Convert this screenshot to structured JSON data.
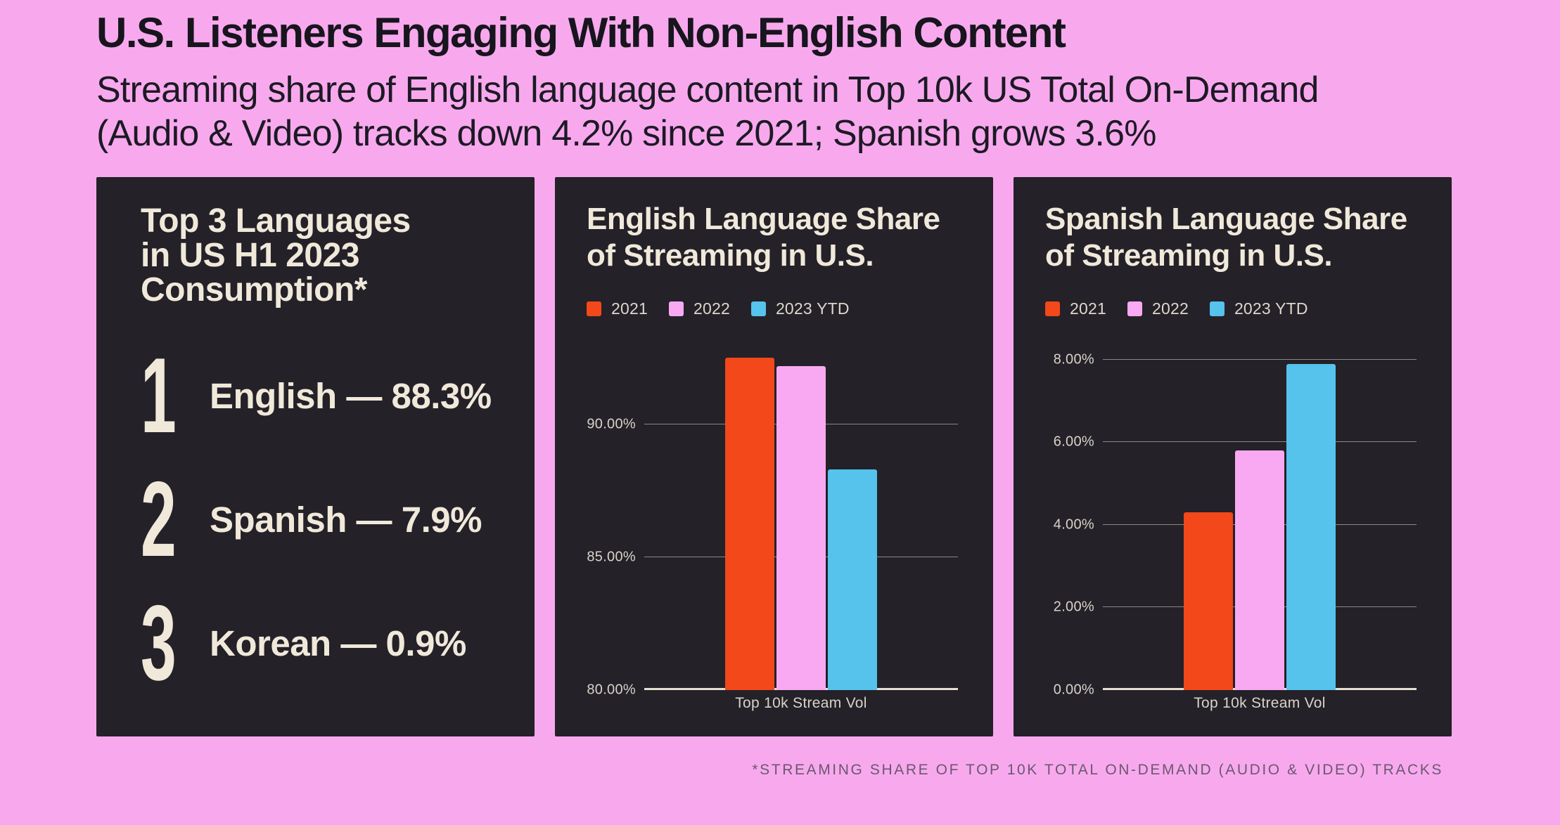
{
  "header": {
    "title": "U.S. Listeners Engaging With Non-English Content",
    "subtitle": "Streaming share of English language content in Top 10k US Total On-Demand\n(Audio & Video) tracks down 4.2% since 2021; Spanish grows 3.6%"
  },
  "ranking": {
    "title": "Top 3 Languages\nin US H1 2023\nConsumption*",
    "items": [
      {
        "rank": "1",
        "language": "English",
        "share": "88.3%",
        "label": "English — 88.3%"
      },
      {
        "rank": "2",
        "language": "Spanish",
        "share": "7.9%",
        "label": "Spanish — 7.9%"
      },
      {
        "rank": "3",
        "language": "Korean",
        "share": "0.9%",
        "label": "Korean — 0.9%"
      }
    ]
  },
  "chart_data": [
    {
      "type": "bar",
      "title": "English Language Share\nof Streaming in U.S.",
      "categories": [
        "Top 10k Stream Vol"
      ],
      "series": [
        {
          "name": "2021",
          "color": "#F2481A",
          "values": [
            92.5
          ]
        },
        {
          "name": "2022",
          "color": "#F9A9F2",
          "values": [
            92.2
          ]
        },
        {
          "name": "2023 YTD",
          "color": "#55C3EC",
          "values": [
            88.3
          ]
        }
      ],
      "xlabel": "Top 10k Stream Vol",
      "ylim": [
        80,
        92.75
      ],
      "gridlines": [
        80,
        85,
        90
      ],
      "tick_suffix": "%",
      "tick_decimals": 2,
      "grid": true,
      "legend_position": "top"
    },
    {
      "type": "bar",
      "title": "Spanish Language Share\nof Streaming in U.S.",
      "categories": [
        "Top 10k Stream Vol"
      ],
      "series": [
        {
          "name": "2021",
          "color": "#F2481A",
          "values": [
            4.3
          ]
        },
        {
          "name": "2022",
          "color": "#F9A9F2",
          "values": [
            5.8
          ]
        },
        {
          "name": "2023 YTD",
          "color": "#55C3EC",
          "values": [
            7.9
          ]
        }
      ],
      "xlabel": "Top 10k Stream Vol",
      "ylim": [
        0,
        8.2
      ],
      "gridlines": [
        0,
        2,
        4,
        6,
        8
      ],
      "tick_suffix": "%",
      "tick_decimals": 2,
      "grid": true,
      "legend_position": "top"
    }
  ],
  "footnote": "*STREAMING SHARE OF TOP 10K TOTAL ON-DEMAND (AUDIO & VIDEO) TRACKS",
  "colors": {
    "background": "#F8A9EE",
    "panel": "#242129",
    "cream_text": "#F0E9DA",
    "orange": "#F2481A",
    "pink": "#F9A9F2",
    "blue": "#55C3EC",
    "gridline": "#8B8880",
    "baseline": "#E6E0D2",
    "axis_text": "#D9D3C7",
    "footnote_text": "#6A5870"
  }
}
